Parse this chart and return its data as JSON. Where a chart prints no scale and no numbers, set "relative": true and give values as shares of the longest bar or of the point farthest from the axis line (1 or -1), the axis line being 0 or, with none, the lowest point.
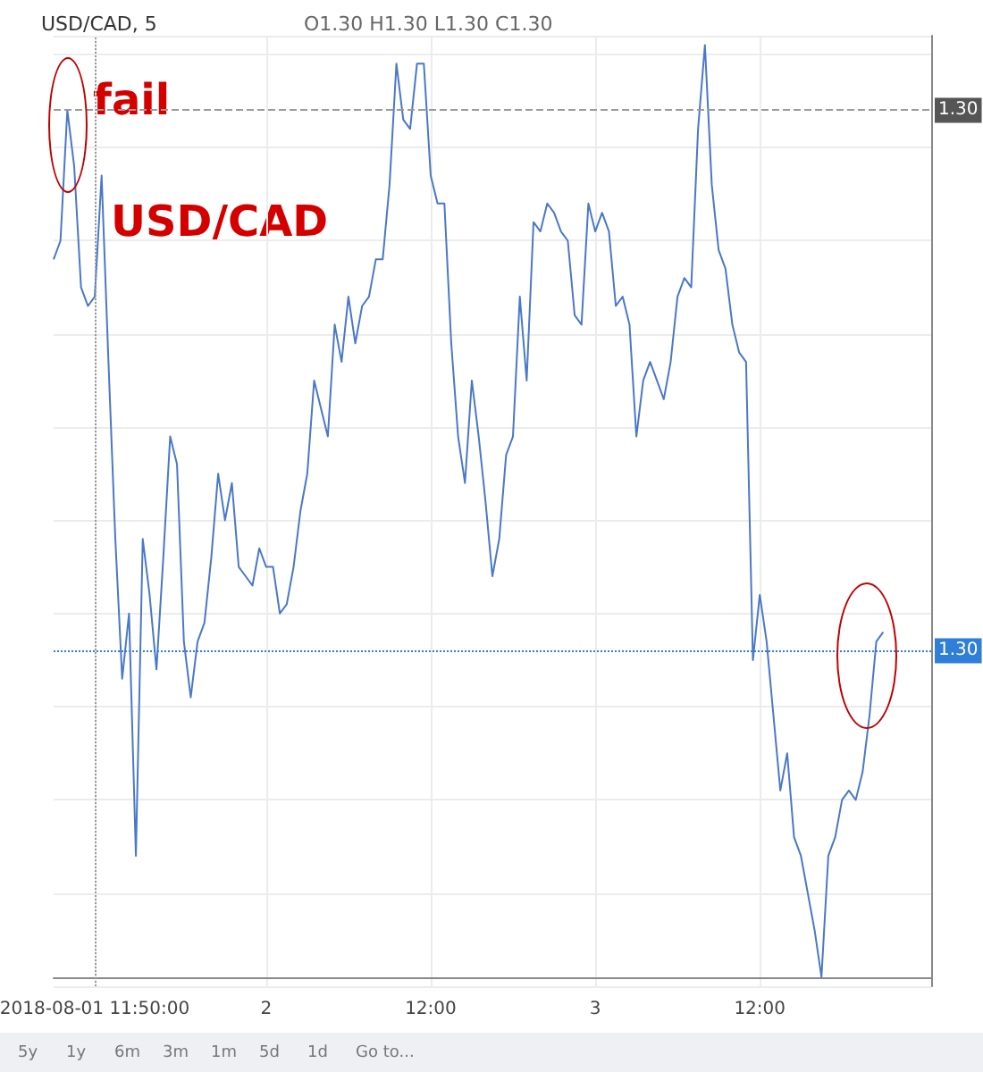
{
  "chart_data": {
    "type": "line",
    "title": "USD/CAD, 5",
    "subtitle": "O1.30 H1.30 L1.30 C1.30",
    "relative": true,
    "grid": true,
    "marker": "none",
    "line_style": "solid",
    "categories": [
      null,
      null,
      null,
      null,
      null,
      null,
      "2018-08-01 11:50:00",
      null,
      null,
      null,
      null,
      null,
      null,
      null,
      null,
      null,
      null,
      null,
      null,
      null,
      null,
      null,
      null,
      null,
      null,
      null,
      null,
      null,
      null,
      null,
      null,
      "2",
      null,
      null,
      null,
      null,
      null,
      null,
      null,
      null,
      null,
      null,
      null,
      null,
      null,
      null,
      null,
      null,
      null,
      null,
      null,
      null,
      null,
      null,
      null,
      "12:00",
      null,
      null,
      null,
      null,
      null,
      null,
      null,
      null,
      null,
      null,
      null,
      null,
      null,
      null,
      null,
      null,
      null,
      null,
      null,
      null,
      null,
      null,
      null,
      "3",
      null,
      null,
      null,
      null,
      null,
      null,
      null,
      null,
      null,
      null,
      null,
      null,
      null,
      null,
      null,
      null,
      null,
      null,
      null,
      null,
      null,
      null,
      null,
      "12:00",
      null,
      null,
      null,
      null,
      null,
      null,
      null,
      null,
      null,
      null,
      null,
      null,
      null,
      null,
      null,
      null,
      null,
      null,
      null,
      null,
      null,
      null,
      null,
      null,
      null
    ],
    "series": [
      {
        "color": "#4a78c8",
        "values": [
          0.77,
          0.79,
          0.93,
          0.87,
          0.74,
          0.72,
          0.73,
          0.86,
          0.66,
          0.47,
          0.32,
          0.39,
          0.13,
          0.47,
          0.41,
          0.33,
          0.45,
          0.58,
          0.55,
          0.36,
          0.3,
          0.36,
          0.38,
          0.45,
          0.54,
          0.49,
          0.53,
          0.44,
          0.43,
          0.42,
          0.46,
          0.44,
          0.44,
          0.39,
          0.4,
          0.44,
          0.5,
          0.54,
          0.64,
          0.61,
          0.58,
          0.7,
          0.66,
          0.73,
          0.68,
          0.72,
          0.73,
          0.77,
          0.77,
          0.85,
          0.98,
          0.92,
          0.91,
          0.98,
          0.98,
          0.86,
          0.83,
          0.83,
          0.68,
          0.58,
          0.53,
          0.64,
          0.58,
          0.51,
          0.43,
          0.47,
          0.56,
          0.58,
          0.73,
          0.64,
          0.81,
          0.8,
          0.83,
          0.82,
          0.8,
          0.79,
          0.71,
          0.7,
          0.83,
          0.8,
          0.82,
          0.8,
          0.72,
          0.73,
          0.7,
          0.58,
          0.64,
          0.66,
          0.64,
          0.62,
          0.66,
          0.73,
          0.75,
          0.74,
          0.91,
          1,
          0.85,
          0.78,
          0.76,
          0.7,
          0.67,
          0.66,
          0.34,
          0.41,
          0.36,
          0.28,
          0.2,
          0.24,
          0.15,
          0.13,
          0.09,
          0.05,
          0,
          0.13,
          0.15,
          0.19,
          0.2,
          0.19,
          0.22,
          0.28,
          0.36,
          0.37,
          null,
          null,
          null,
          null,
          null,
          null,
          null
        ]
      }
    ],
    "ref_lines": [
      {
        "axis": "x",
        "value": "2018-08-01 11:50:00",
        "line_style": "dotted",
        "color": "#9a9a9a"
      },
      {
        "axis": "y",
        "value": 0.93,
        "line_style": "dashed",
        "color": "#9a9a9a"
      },
      {
        "axis": "y",
        "value": 0.35,
        "line_style": "dotted",
        "color": "#2f7ed8"
      }
    ],
    "annotations": [
      "fail",
      "USD/CAD",
      "5y",
      "1y",
      "6m",
      "3m",
      "1m",
      "5d",
      "1d",
      "Go to...",
      {
        "text": "1.30",
        "y": 0.93
      },
      {
        "text": "1.30",
        "y": 0.35
      }
    ]
  }
}
